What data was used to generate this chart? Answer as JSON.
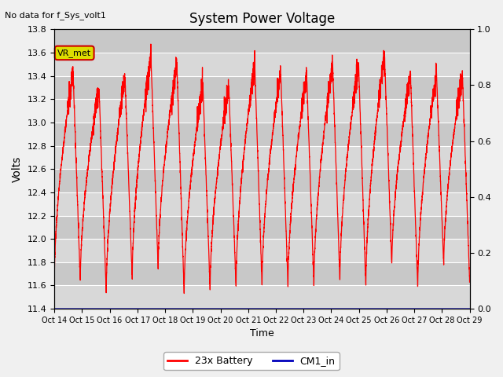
{
  "title": "System Power Voltage",
  "subtitle": "No data for f_Sys_volt1",
  "ylabel_left": "Volts",
  "xlabel": "Time",
  "ylim_left": [
    11.4,
    13.8
  ],
  "ylim_right": [
    0.0,
    1.0
  ],
  "yticks_left": [
    11.4,
    11.6,
    11.8,
    12.0,
    12.2,
    12.4,
    12.6,
    12.8,
    13.0,
    13.2,
    13.4,
    13.6,
    13.8
  ],
  "yticks_right": [
    0.0,
    0.2,
    0.4,
    0.6,
    0.8,
    1.0
  ],
  "xtick_labels": [
    "Oct 14",
    "Oct 15",
    "Oct 16",
    "Oct 17",
    "Oct 18",
    "Oct 19",
    "Oct 20",
    "Oct 21",
    "Oct 22",
    "Oct 23",
    "Oct 24",
    "Oct 25",
    "Oct 26",
    "Oct 27",
    "Oct 28",
    "Oct 29"
  ],
  "legend_labels": [
    "23x Battery",
    "CM1_in"
  ],
  "legend_colors": [
    "#ff0000",
    "#0000bb"
  ],
  "battery_color": "#ff0000",
  "cm1_color": "#0000bb",
  "annotation_text": "VR_met",
  "annotation_bg": "#dddd00",
  "annotation_border": "#cc0000",
  "plot_bg_light": "#d8d8d8",
  "plot_bg_dark": "#c8c8c8",
  "fig_bg": "#f0f0f0",
  "grid_color": "#ffffff",
  "n_cycles": 16
}
